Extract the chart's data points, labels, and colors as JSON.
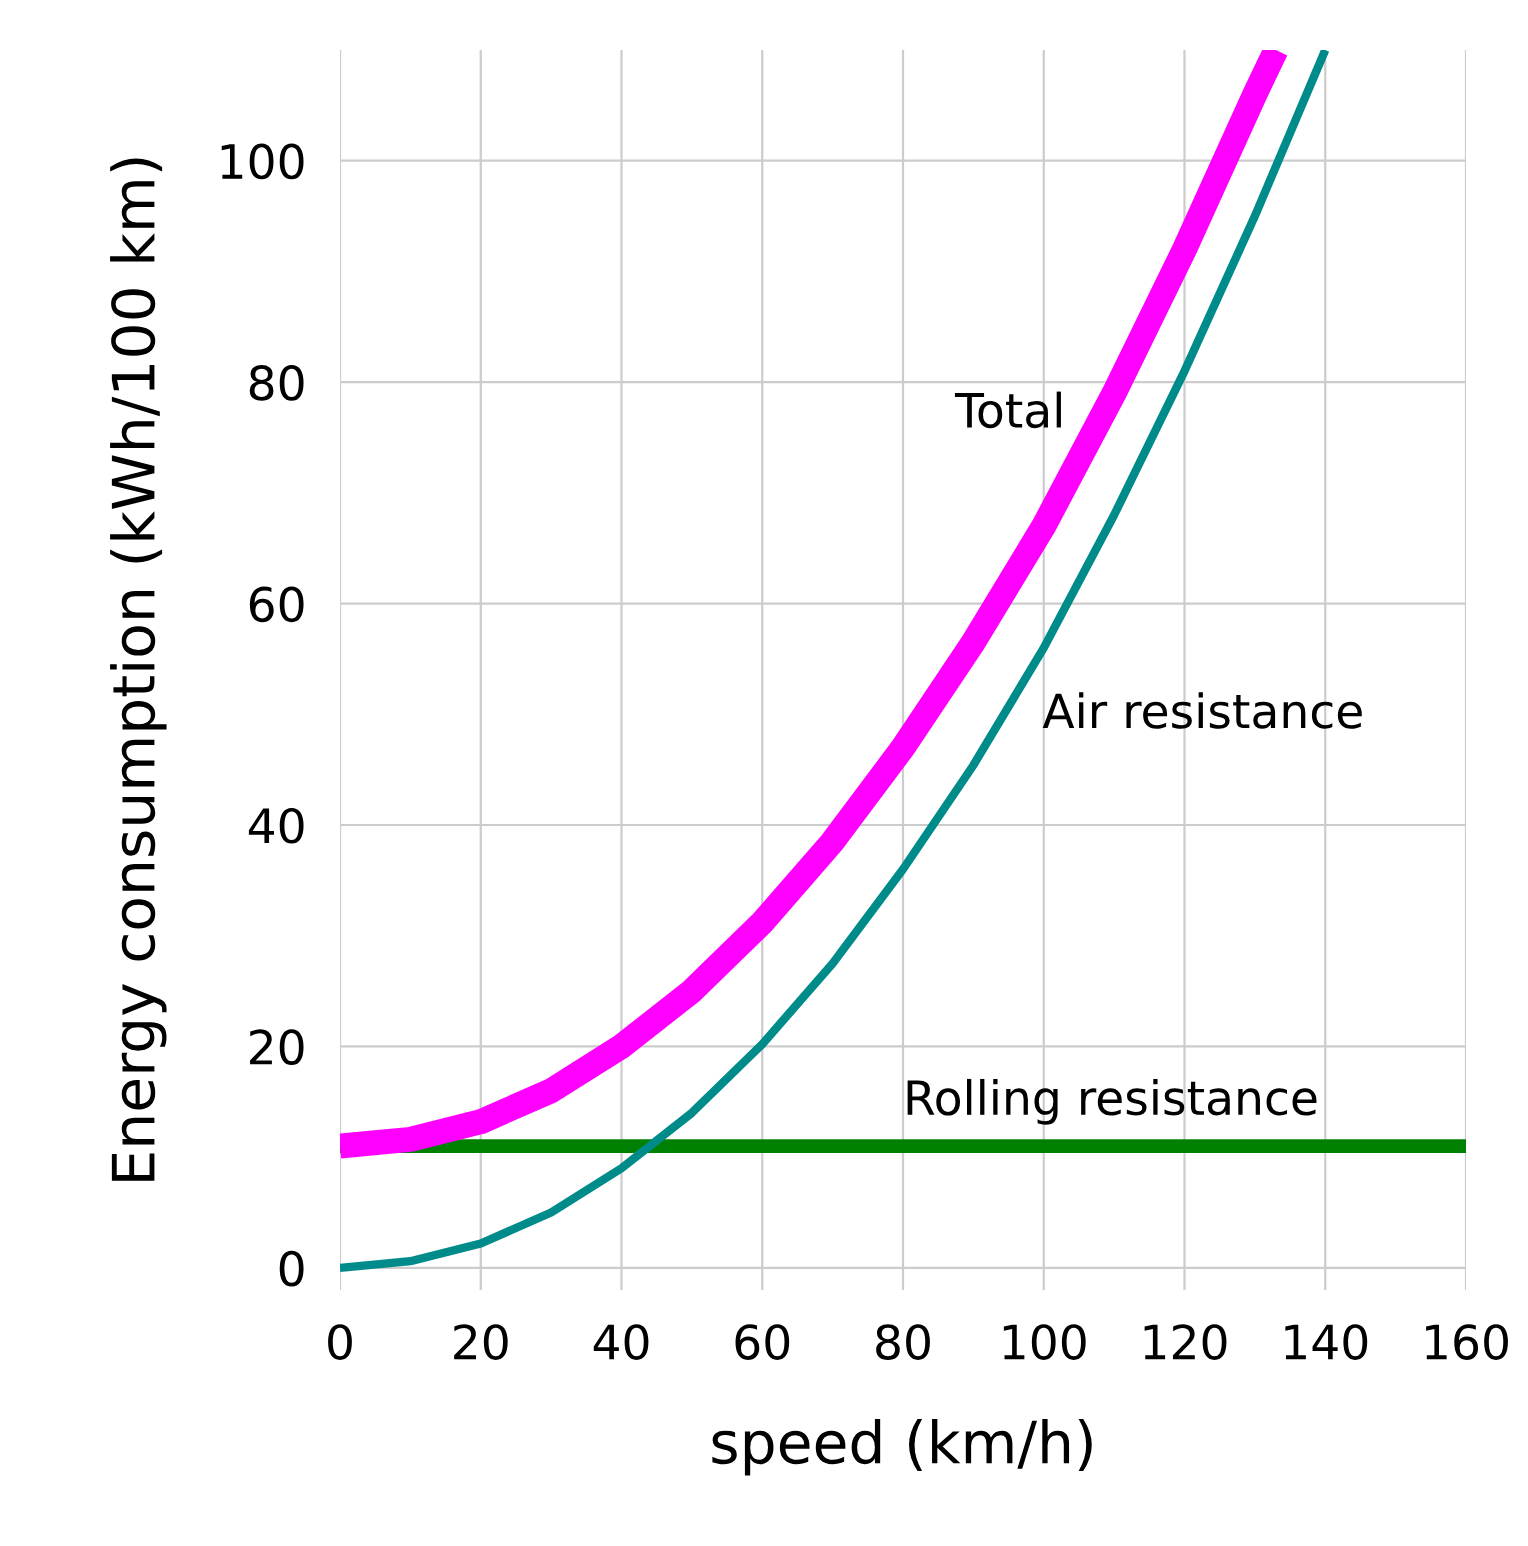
{
  "chart_data": {
    "type": "line",
    "xlabel": "speed (km/h)",
    "ylabel": "Energy consumption (kWh/100 km)",
    "xlim": [
      0,
      160
    ],
    "ylim": [
      -2,
      110
    ],
    "xticks": [
      0,
      20,
      40,
      60,
      80,
      100,
      120,
      140,
      160
    ],
    "yticks": [
      0,
      20,
      40,
      60,
      80,
      100
    ],
    "grid": true,
    "marker": "none",
    "line_style": "solid",
    "series": [
      {
        "name": "Total",
        "color": "#ff00ff",
        "x": [
          0,
          10,
          20,
          30,
          40,
          50,
          60,
          70,
          80,
          90,
          100,
          110,
          120,
          130,
          133
        ],
        "values": [
          11,
          11.6,
          13.2,
          16,
          20,
          25,
          31.2,
          38.5,
          47,
          56.5,
          67,
          79,
          92,
          106,
          110
        ]
      },
      {
        "name": "Air resistance",
        "color": "#008b8b",
        "x": [
          0,
          10,
          20,
          30,
          40,
          50,
          60,
          70,
          80,
          90,
          100,
          110,
          120,
          130,
          140
        ],
        "values": [
          0,
          0.6,
          2.2,
          5,
          9,
          14,
          20.2,
          27.5,
          36,
          45.4,
          56,
          68,
          81,
          95,
          110
        ]
      },
      {
        "name": "Rolling resistance",
        "color": "#008000",
        "x": [
          0,
          160
        ],
        "values": [
          11,
          11
        ]
      }
    ]
  }
}
